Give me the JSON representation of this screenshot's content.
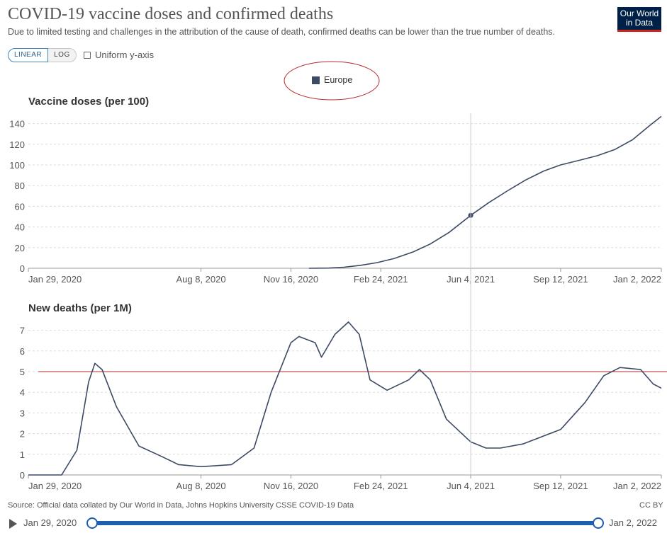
{
  "header": {
    "title": "COVID-19 vaccine doses and confirmed deaths",
    "subtitle": "Due to limited testing and challenges in the attribution of the cause of death, confirmed deaths can be lower than the true number of deaths.",
    "logo_line1": "Our World",
    "logo_line2": "in Data"
  },
  "controls": {
    "linear_label": "LINEAR",
    "log_label": "LOG",
    "uniform_label": "Uniform y-axis"
  },
  "legend": {
    "entries": [
      {
        "label": "Europe",
        "color": "#3c4a64"
      }
    ]
  },
  "footer": {
    "source": "Source: Official data collated by Our World in Data, Johns Hopkins University CSSE COVID-19 Data",
    "license": "CC BY"
  },
  "timeline": {
    "start": "Jan 29, 2020",
    "end": "Jan 2, 2022"
  },
  "colors": {
    "series": "#3c4a64",
    "annotation": "#b42a2a",
    "grid": "#dddddd"
  },
  "chart_data": [
    {
      "type": "line",
      "title": "Vaccine doses (per 100)",
      "x_type": "date",
      "xlim": [
        "2020-01-29",
        "2022-01-02"
      ],
      "xticks": [
        "2020-01-29",
        "2020-08-08",
        "2020-11-16",
        "2021-02-24",
        "2021-06-04",
        "2021-09-12",
        "2022-01-02"
      ],
      "xtick_labels": [
        "Jan 29, 2020",
        "Aug 8, 2020",
        "Nov 16, 2020",
        "Feb 24, 2021",
        "Jun 4, 2021",
        "Sep 12, 2021",
        "Jan 2, 2022"
      ],
      "ylim": [
        0,
        150
      ],
      "yticks": [
        0,
        20,
        40,
        60,
        80,
        100,
        120,
        140
      ],
      "grid": true,
      "highlight": {
        "x": "2021-06-04",
        "y": 51.2
      },
      "series": [
        {
          "name": "Europe",
          "x": [
            "2020-12-06",
            "2020-12-28",
            "2021-01-14",
            "2021-02-01",
            "2021-02-20",
            "2021-03-11",
            "2021-04-01",
            "2021-04-20",
            "2021-05-11",
            "2021-06-04",
            "2021-06-24",
            "2021-07-15",
            "2021-08-04",
            "2021-08-24",
            "2021-09-12",
            "2021-10-03",
            "2021-10-23",
            "2021-11-11",
            "2021-12-01",
            "2021-12-21",
            "2022-01-02"
          ],
          "values": [
            0.0,
            0.2,
            1.0,
            2.8,
            5.5,
            9.5,
            15.8,
            23.5,
            34.7,
            51.2,
            63.5,
            75.0,
            85.4,
            94.0,
            100.0,
            104.5,
            109.0,
            114.8,
            124.4,
            138.8,
            147.0
          ]
        }
      ]
    },
    {
      "type": "line",
      "title": "New deaths (per 1M)",
      "x_type": "date",
      "xlim": [
        "2020-01-29",
        "2022-01-02"
      ],
      "xticks": [
        "2020-01-29",
        "2020-08-08",
        "2020-11-16",
        "2021-02-24",
        "2021-06-04",
        "2021-09-12",
        "2022-01-02"
      ],
      "xtick_labels": [
        "Jan 29, 2020",
        "Aug 8, 2020",
        "Nov 16, 2020",
        "Feb 24, 2021",
        "Jun 4, 2021",
        "Sep 12, 2021",
        "Jan 2, 2022"
      ],
      "ylim": [
        0,
        7.5
      ],
      "yticks": [
        0,
        1,
        2,
        3,
        4,
        5,
        6,
        7
      ],
      "grid": true,
      "reference_line": 5,
      "series": [
        {
          "name": "Europe",
          "x": [
            "2020-01-29",
            "2020-03-06",
            "2020-03-23",
            "2020-04-05",
            "2020-04-12",
            "2020-04-20",
            "2020-05-06",
            "2020-05-31",
            "2020-06-25",
            "2020-07-14",
            "2020-08-08",
            "2020-09-11",
            "2020-10-06",
            "2020-10-25",
            "2020-11-16",
            "2020-11-25",
            "2020-12-13",
            "2020-12-20",
            "2021-01-04",
            "2021-01-19",
            "2021-01-31",
            "2021-02-12",
            "2021-03-03",
            "2021-03-27",
            "2021-04-08",
            "2021-04-20",
            "2021-05-08",
            "2021-06-04",
            "2021-06-21",
            "2021-07-07",
            "2021-08-01",
            "2021-08-25",
            "2021-09-12",
            "2021-10-09",
            "2021-10-30",
            "2021-11-17",
            "2021-12-10",
            "2021-12-24",
            "2022-01-02"
          ],
          "values": [
            0.0,
            0.0,
            1.2,
            4.5,
            5.4,
            5.1,
            3.3,
            1.4,
            0.9,
            0.5,
            0.4,
            0.5,
            1.3,
            4.0,
            6.4,
            6.7,
            6.4,
            5.7,
            6.8,
            7.4,
            6.8,
            4.6,
            4.1,
            4.6,
            5.1,
            4.6,
            2.7,
            1.6,
            1.3,
            1.3,
            1.5,
            1.9,
            2.2,
            3.5,
            4.8,
            5.2,
            5.1,
            4.4,
            4.2
          ]
        }
      ]
    }
  ]
}
